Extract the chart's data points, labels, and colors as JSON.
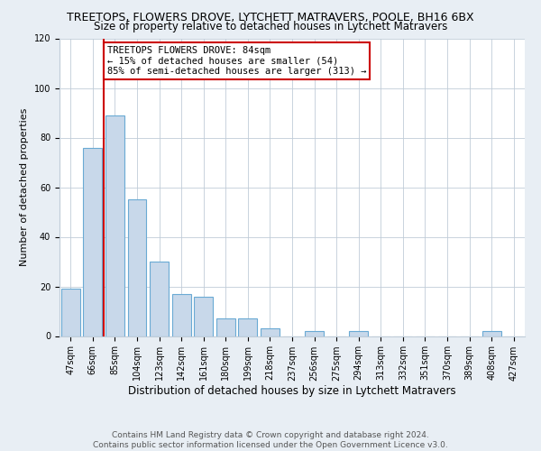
{
  "title": "TREETOPS, FLOWERS DROVE, LYTCHETT MATRAVERS, POOLE, BH16 6BX",
  "subtitle": "Size of property relative to detached houses in Lytchett Matravers",
  "xlabel": "Distribution of detached houses by size in Lytchett Matravers",
  "ylabel": "Number of detached properties",
  "bar_labels": [
    "47sqm",
    "66sqm",
    "85sqm",
    "104sqm",
    "123sqm",
    "142sqm",
    "161sqm",
    "180sqm",
    "199sqm",
    "218sqm",
    "237sqm",
    "256sqm",
    "275sqm",
    "294sqm",
    "313sqm",
    "332sqm",
    "351sqm",
    "370sqm",
    "389sqm",
    "408sqm",
    "427sqm"
  ],
  "bar_values": [
    19,
    76,
    89,
    55,
    30,
    17,
    16,
    7,
    7,
    3,
    0,
    2,
    0,
    2,
    0,
    0,
    0,
    0,
    0,
    2,
    0
  ],
  "bar_color": "#c8d8ea",
  "bar_edge_color": "#6aaad4",
  "vline_color": "#cc0000",
  "annotation_text": "TREETOPS FLOWERS DROVE: 84sqm\n← 15% of detached houses are smaller (54)\n85% of semi-detached houses are larger (313) →",
  "annotation_box_color": "#ffffff",
  "annotation_box_edge_color": "#cc0000",
  "ylim": [
    0,
    120
  ],
  "yticks": [
    0,
    20,
    40,
    60,
    80,
    100,
    120
  ],
  "footnote1": "Contains HM Land Registry data © Crown copyright and database right 2024.",
  "footnote2": "Contains public sector information licensed under the Open Government Licence v3.0.",
  "background_color": "#e8eef4",
  "plot_background_color": "#ffffff",
  "title_fontsize": 9,
  "subtitle_fontsize": 8.5,
  "xlabel_fontsize": 8.5,
  "ylabel_fontsize": 8,
  "tick_fontsize": 7,
  "annotation_fontsize": 7.5,
  "footnote_fontsize": 6.5
}
